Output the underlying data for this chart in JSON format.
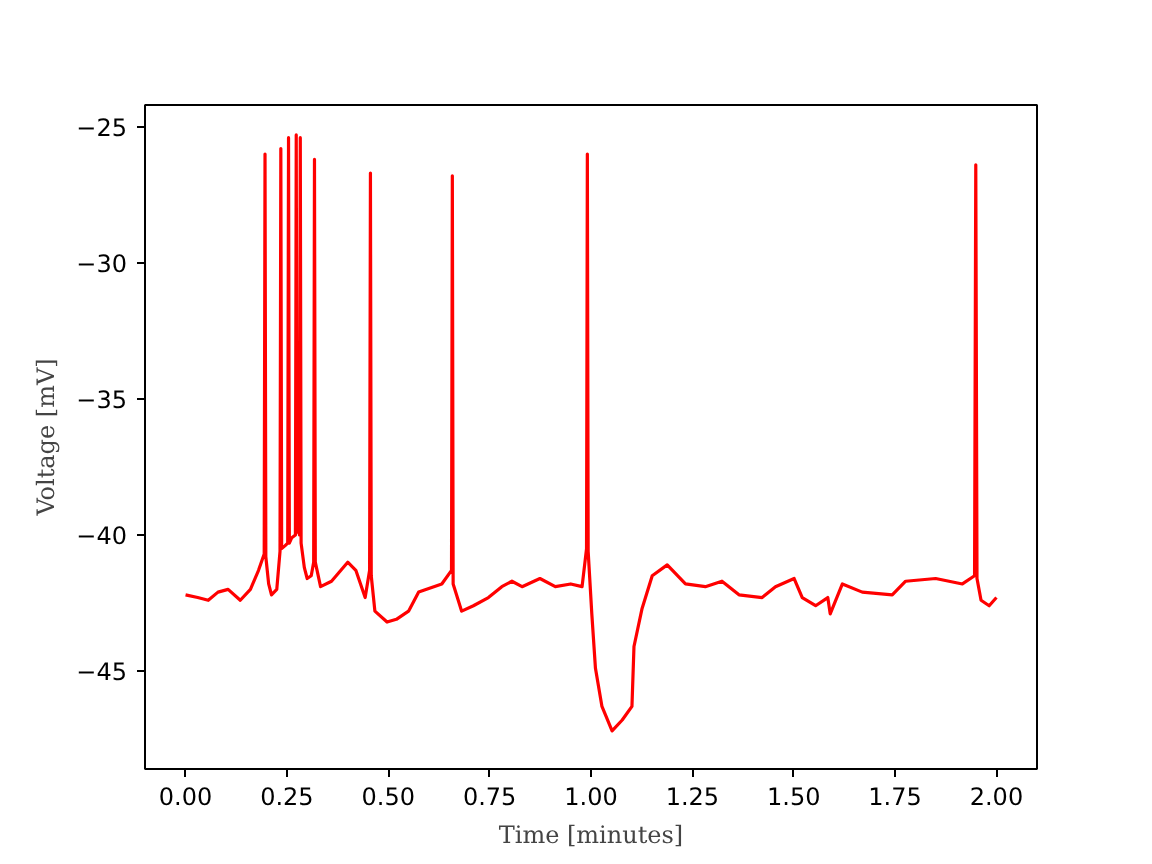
{
  "chart_data": {
    "type": "line",
    "xlabel": "Time [minutes]",
    "ylabel": "Voltage [mV]",
    "xlim": [
      -0.1,
      2.1
    ],
    "ylim": [
      -48.6,
      -24.2
    ],
    "xticks": [
      {
        "value": 0,
        "label": "0.00"
      },
      {
        "value": 0.25,
        "label": "0.25"
      },
      {
        "value": 0.5,
        "label": "0.50"
      },
      {
        "value": 0.75,
        "label": "0.75"
      },
      {
        "value": 1,
        "label": "1.00"
      },
      {
        "value": 1.25,
        "label": "1.25"
      },
      {
        "value": 1.5,
        "label": "1.50"
      },
      {
        "value": 1.75,
        "label": "1.75"
      },
      {
        "value": 2,
        "label": "2.00"
      }
    ],
    "yticks": [
      {
        "value": -45,
        "label": "−45"
      },
      {
        "value": -40,
        "label": "−40"
      },
      {
        "value": -35,
        "label": "−35"
      },
      {
        "value": -30,
        "label": "−30"
      },
      {
        "value": -25,
        "label": "−25"
      }
    ],
    "line_style": "solid",
    "series": [
      {
        "color": "#ff0000",
        "x": [
          0.0,
          0.03,
          0.056,
          0.08,
          0.105,
          0.135,
          0.16,
          0.18,
          0.194,
          0.196,
          0.198,
          0.205,
          0.212,
          0.225,
          0.233,
          0.235,
          0.237,
          0.245,
          0.252,
          0.254,
          0.256,
          0.262,
          0.271,
          0.273,
          0.275,
          0.278,
          0.281,
          0.283,
          0.285,
          0.293,
          0.3,
          0.31,
          0.316,
          0.318,
          0.32,
          0.333,
          0.36,
          0.4,
          0.42,
          0.443,
          0.454,
          0.456,
          0.458,
          0.467,
          0.497,
          0.52,
          0.55,
          0.575,
          0.632,
          0.656,
          0.658,
          0.66,
          0.681,
          0.71,
          0.747,
          0.78,
          0.805,
          0.83,
          0.874,
          0.912,
          0.95,
          0.978,
          0.989,
          0.991,
          0.993,
          1.002,
          1.011,
          1.027,
          1.052,
          1.077,
          1.101,
          1.106,
          1.126,
          1.151,
          1.188,
          1.233,
          1.282,
          1.323,
          1.365,
          1.422,
          1.455,
          1.501,
          1.521,
          1.554,
          1.584,
          1.59,
          1.62,
          1.669,
          1.743,
          1.776,
          1.85,
          1.916,
          1.946,
          1.949,
          1.952,
          1.962,
          1.982,
          2.0
        ],
        "values": [
          -42.2,
          -42.3,
          -42.4,
          -42.1,
          -42.0,
          -42.4,
          -42.0,
          -41.3,
          -40.7,
          -26.0,
          -40.8,
          -41.8,
          -42.2,
          -42.0,
          -40.6,
          -25.8,
          -40.5,
          -40.4,
          -40.3,
          -25.4,
          -40.3,
          -40.1,
          -40.0,
          -25.3,
          -39.9,
          -39.7,
          -40.0,
          -25.4,
          -40.3,
          -41.2,
          -41.6,
          -41.5,
          -41.0,
          -26.2,
          -41.0,
          -41.9,
          -41.7,
          -41.0,
          -41.3,
          -42.3,
          -41.3,
          -26.7,
          -41.5,
          -42.8,
          -43.2,
          -43.1,
          -42.8,
          -42.1,
          -41.8,
          -41.3,
          -26.8,
          -41.8,
          -42.8,
          -42.6,
          -42.3,
          -41.9,
          -41.7,
          -41.9,
          -41.6,
          -41.9,
          -41.8,
          -41.9,
          -40.5,
          -26.0,
          -40.6,
          -42.9,
          -44.9,
          -46.3,
          -47.2,
          -46.8,
          -46.3,
          -44.1,
          -42.7,
          -41.5,
          -41.1,
          -41.8,
          -41.9,
          -41.7,
          -42.2,
          -42.3,
          -41.9,
          -41.6,
          -42.3,
          -42.6,
          -42.3,
          -42.9,
          -41.8,
          -42.1,
          -42.2,
          -41.7,
          -41.6,
          -41.8,
          -41.5,
          -26.4,
          -41.6,
          -42.4,
          -42.6,
          -42.3
        ]
      }
    ]
  }
}
